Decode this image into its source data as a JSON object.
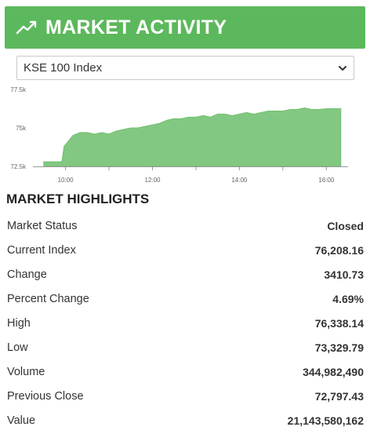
{
  "header": {
    "title": "MARKET ACTIVITY",
    "icon": "trending-up-icon"
  },
  "index_select": {
    "selected": "KSE 100 Index"
  },
  "chart_data": {
    "type": "area",
    "title": "",
    "xlabel": "",
    "ylabel": "",
    "x_ticks": [
      "10:00",
      "12:00",
      "14:00",
      "16:00"
    ],
    "y_ticks": [
      "72.5k",
      "75k",
      "77.5k"
    ],
    "ylim": [
      72500,
      77500
    ],
    "xlim": [
      "09:15",
      "16:30"
    ],
    "color": "#82c882",
    "x": [
      "09:30",
      "09:45",
      "09:55",
      "09:58",
      "10:05",
      "10:10",
      "10:20",
      "10:30",
      "10:40",
      "10:50",
      "11:00",
      "11:10",
      "11:20",
      "11:30",
      "11:40",
      "11:50",
      "12:00",
      "12:10",
      "12:20",
      "12:30",
      "12:40",
      "12:50",
      "13:00",
      "13:10",
      "13:20",
      "13:30",
      "13:40",
      "13:50",
      "14:00",
      "14:10",
      "14:20",
      "14:30",
      "14:40",
      "14:50",
      "15:00",
      "15:10",
      "15:20",
      "15:30",
      "15:40",
      "15:50",
      "16:00",
      "16:10",
      "16:20"
    ],
    "values": [
      72800,
      72800,
      72800,
      73800,
      74200,
      74500,
      74700,
      74700,
      74600,
      74700,
      74600,
      74800,
      74900,
      75000,
      75000,
      75100,
      75200,
      75300,
      75500,
      75600,
      75600,
      75700,
      75700,
      75800,
      75700,
      75900,
      75900,
      75800,
      75900,
      76000,
      75900,
      76000,
      76100,
      76100,
      76100,
      76200,
      76200,
      76300,
      76200,
      76200,
      76250,
      76250,
      76250
    ]
  },
  "highlights": {
    "title": "MARKET HIGHLIGHTS",
    "rows": [
      {
        "label": "Market Status",
        "value": "Closed"
      },
      {
        "label": "Current Index",
        "value": "76,208.16"
      },
      {
        "label": "Change",
        "value": "3410.73"
      },
      {
        "label": "Percent Change",
        "value": "4.69%"
      },
      {
        "label": "High",
        "value": "76,338.14"
      },
      {
        "label": "Low",
        "value": "73,329.79"
      },
      {
        "label": "Volume",
        "value": "344,982,490"
      },
      {
        "label": "Previous Close",
        "value": "72,797.43"
      },
      {
        "label": "Value",
        "value": "21,143,580,162"
      }
    ]
  }
}
